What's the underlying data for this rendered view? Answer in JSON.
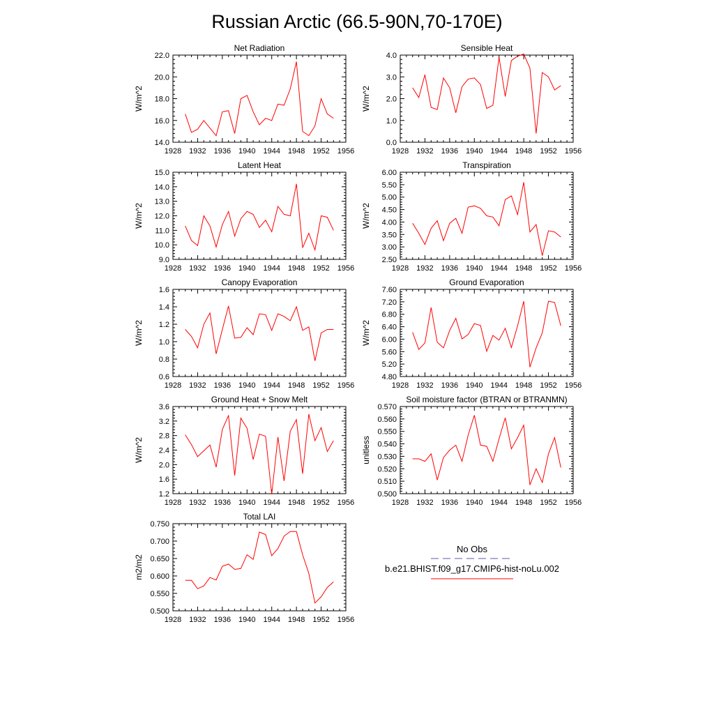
{
  "figure": {
    "title": "Russian Arctic (66.5-90N,70-170E)"
  },
  "legend": {
    "entries": [
      {
        "label": "No Obs",
        "color": "#5a5aa8",
        "style": "dashed"
      },
      {
        "label": "b.e21.BHIST.f09_g17.CMIP6-hist-noLu.002",
        "color": "#ff0000",
        "style": "solid"
      }
    ]
  },
  "chart_data": [
    {
      "type": "line",
      "title": "Net Radiation",
      "ylabel": "W/m^2",
      "xlim": [
        1928,
        1956
      ],
      "ylim": [
        14,
        22
      ],
      "xticks": [
        1928,
        1932,
        1936,
        1940,
        1944,
        1948,
        1952,
        1956
      ],
      "yticks": [
        "14.0",
        "16.0",
        "18.0",
        "20.0",
        "22.0"
      ],
      "series": [
        {
          "color": "#ff0000",
          "x": [
            1930,
            1931,
            1932,
            1933,
            1934,
            1935,
            1936,
            1937,
            1938,
            1939,
            1940,
            1941,
            1942,
            1943,
            1944,
            1945,
            1946,
            1947,
            1948,
            1949,
            1950,
            1951,
            1952,
            1953,
            1954
          ],
          "values": [
            16.6,
            14.9,
            15.2,
            16.0,
            15.3,
            14.6,
            16.8,
            16.9,
            14.8,
            18.0,
            18.3,
            16.8,
            15.6,
            16.2,
            16.0,
            17.5,
            17.4,
            18.9,
            21.4,
            15.0,
            14.6,
            15.5,
            18.0,
            16.6,
            16.2
          ]
        }
      ]
    },
    {
      "type": "line",
      "title": "Sensible Heat",
      "ylabel": "W/m^2",
      "xlim": [
        1928,
        1956
      ],
      "ylim": [
        0,
        4
      ],
      "xticks": [
        1928,
        1932,
        1936,
        1940,
        1944,
        1948,
        1952,
        1956
      ],
      "yticks": [
        "0.0",
        "1.0",
        "2.0",
        "3.0",
        "4.0"
      ],
      "series": [
        {
          "color": "#ff0000",
          "x": [
            1930,
            1931,
            1932,
            1933,
            1934,
            1935,
            1936,
            1937,
            1938,
            1939,
            1940,
            1941,
            1942,
            1943,
            1944,
            1945,
            1946,
            1947,
            1948,
            1949,
            1950,
            1951,
            1952,
            1953,
            1954
          ],
          "values": [
            2.5,
            2.05,
            3.1,
            1.6,
            1.5,
            2.95,
            2.5,
            1.35,
            2.55,
            2.9,
            2.95,
            2.65,
            1.55,
            1.7,
            3.9,
            2.1,
            3.75,
            3.95,
            4.05,
            3.4,
            0.4,
            3.2,
            3.0,
            2.4,
            2.6
          ]
        }
      ]
    },
    {
      "type": "line",
      "title": "Latent Heat",
      "ylabel": "W/m^2",
      "xlim": [
        1928,
        1956
      ],
      "ylim": [
        9,
        15
      ],
      "xticks": [
        1928,
        1932,
        1936,
        1940,
        1944,
        1948,
        1952,
        1956
      ],
      "yticks": [
        "9.0",
        "10.0",
        "11.0",
        "12.0",
        "13.0",
        "14.0",
        "15.0"
      ],
      "series": [
        {
          "color": "#ff0000",
          "x": [
            1930,
            1931,
            1932,
            1933,
            1934,
            1935,
            1936,
            1937,
            1938,
            1939,
            1940,
            1941,
            1942,
            1943,
            1944,
            1945,
            1946,
            1947,
            1948,
            1949,
            1950,
            1951,
            1952,
            1953,
            1954
          ],
          "values": [
            11.3,
            10.3,
            9.95,
            12.0,
            11.3,
            9.85,
            11.4,
            12.3,
            10.6,
            11.8,
            12.3,
            12.1,
            11.2,
            11.7,
            10.9,
            12.65,
            12.1,
            12.0,
            14.2,
            9.8,
            10.8,
            9.65,
            12.0,
            11.9,
            11.0
          ]
        }
      ]
    },
    {
      "type": "line",
      "title": "Transpiration",
      "ylabel": "W/m^2",
      "xlim": [
        1928,
        1956
      ],
      "ylim": [
        2.5,
        6.0
      ],
      "xticks": [
        1928,
        1932,
        1936,
        1940,
        1944,
        1948,
        1952,
        1956
      ],
      "yticks": [
        "2.50",
        "3.00",
        "3.50",
        "4.00",
        "4.50",
        "5.00",
        "5.50",
        "6.00"
      ],
      "series": [
        {
          "color": "#ff0000",
          "x": [
            1930,
            1931,
            1932,
            1933,
            1934,
            1935,
            1936,
            1937,
            1938,
            1939,
            1940,
            1941,
            1942,
            1943,
            1944,
            1945,
            1946,
            1947,
            1948,
            1949,
            1950,
            1951,
            1952,
            1953,
            1954
          ],
          "values": [
            3.95,
            3.55,
            3.1,
            3.75,
            4.05,
            3.25,
            3.95,
            4.15,
            3.55,
            4.6,
            4.65,
            4.55,
            4.25,
            4.2,
            3.85,
            4.9,
            5.05,
            4.3,
            5.6,
            3.6,
            3.9,
            2.65,
            3.65,
            3.6,
            3.4
          ]
        }
      ]
    },
    {
      "type": "line",
      "title": "Canopy Evaporation",
      "ylabel": "W/m^2",
      "xlim": [
        1928,
        1956
      ],
      "ylim": [
        0.6,
        1.6
      ],
      "xticks": [
        1928,
        1932,
        1936,
        1940,
        1944,
        1948,
        1952,
        1956
      ],
      "yticks": [
        "0.6",
        "0.8",
        "1.0",
        "1.2",
        "1.4",
        "1.6"
      ],
      "series": [
        {
          "color": "#ff0000",
          "x": [
            1930,
            1931,
            1932,
            1933,
            1934,
            1935,
            1936,
            1937,
            1938,
            1939,
            1940,
            1941,
            1942,
            1943,
            1944,
            1945,
            1946,
            1947,
            1948,
            1949,
            1950,
            1951,
            1952,
            1953,
            1954
          ],
          "values": [
            1.14,
            1.06,
            0.93,
            1.2,
            1.33,
            0.86,
            1.14,
            1.41,
            1.04,
            1.05,
            1.16,
            1.08,
            1.32,
            1.31,
            1.13,
            1.32,
            1.29,
            1.24,
            1.4,
            1.13,
            1.17,
            0.78,
            1.1,
            1.14,
            1.14
          ]
        }
      ]
    },
    {
      "type": "line",
      "title": "Ground Evaporation",
      "ylabel": "W/m^2",
      "xlim": [
        1928,
        1956
      ],
      "ylim": [
        4.8,
        7.6
      ],
      "xticks": [
        1928,
        1932,
        1936,
        1940,
        1944,
        1948,
        1952,
        1956
      ],
      "yticks": [
        "4.80",
        "5.20",
        "5.60",
        "6.00",
        "6.40",
        "6.80",
        "7.20",
        "7.60"
      ],
      "series": [
        {
          "color": "#ff0000",
          "x": [
            1930,
            1931,
            1932,
            1933,
            1934,
            1935,
            1936,
            1937,
            1938,
            1939,
            1940,
            1941,
            1942,
            1943,
            1944,
            1945,
            1946,
            1947,
            1948,
            1949,
            1950,
            1951,
            1952,
            1953,
            1954
          ],
          "values": [
            6.22,
            5.67,
            5.88,
            7.02,
            5.9,
            5.72,
            6.28,
            6.67,
            6.01,
            6.15,
            6.5,
            6.44,
            5.61,
            6.12,
            5.97,
            6.35,
            5.73,
            6.43,
            7.22,
            5.1,
            5.72,
            6.2,
            7.22,
            7.18,
            6.43
          ]
        }
      ]
    },
    {
      "type": "line",
      "title": "Ground Heat + Snow Melt",
      "ylabel": "W/m^2",
      "xlim": [
        1928,
        1956
      ],
      "ylim": [
        1.2,
        3.6
      ],
      "xticks": [
        1928,
        1932,
        1936,
        1940,
        1944,
        1948,
        1952,
        1956
      ],
      "yticks": [
        "1.2",
        "1.6",
        "2.0",
        "2.4",
        "2.8",
        "3.2",
        "3.6"
      ],
      "series": [
        {
          "color": "#ff0000",
          "x": [
            1930,
            1931,
            1932,
            1933,
            1934,
            1935,
            1936,
            1937,
            1938,
            1939,
            1940,
            1941,
            1942,
            1943,
            1944,
            1945,
            1946,
            1947,
            1948,
            1949,
            1950,
            1951,
            1952,
            1953,
            1954
          ],
          "values": [
            2.82,
            2.55,
            2.22,
            2.38,
            2.54,
            1.93,
            2.97,
            3.35,
            1.7,
            3.28,
            3.0,
            2.14,
            2.84,
            2.78,
            1.18,
            2.76,
            1.55,
            2.92,
            3.24,
            1.75,
            3.39,
            2.66,
            3.02,
            2.36,
            2.66
          ]
        }
      ]
    },
    {
      "type": "line",
      "title": "Soil moisture factor (BTRAN or BTRANMN)",
      "ylabel": "unitless",
      "xlim": [
        1928,
        1956
      ],
      "ylim": [
        0.5,
        0.57
      ],
      "xticks": [
        1928,
        1932,
        1936,
        1940,
        1944,
        1948,
        1952,
        1956
      ],
      "yticks": [
        "0.500",
        "0.510",
        "0.520",
        "0.530",
        "0.540",
        "0.550",
        "0.560",
        "0.570"
      ],
      "series": [
        {
          "color": "#ff0000",
          "x": [
            1930,
            1931,
            1932,
            1933,
            1934,
            1935,
            1936,
            1937,
            1938,
            1939,
            1940,
            1941,
            1942,
            1943,
            1944,
            1945,
            1946,
            1947,
            1948,
            1949,
            1950,
            1951,
            1952,
            1953,
            1954
          ],
          "values": [
            0.528,
            0.528,
            0.526,
            0.532,
            0.511,
            0.529,
            0.535,
            0.539,
            0.526,
            0.547,
            0.563,
            0.539,
            0.538,
            0.526,
            0.544,
            0.561,
            0.536,
            0.545,
            0.555,
            0.507,
            0.52,
            0.509,
            0.532,
            0.545,
            0.521
          ]
        }
      ]
    },
    {
      "type": "line",
      "title": "Total LAI",
      "ylabel": "m2/m2",
      "xlim": [
        1928,
        1956
      ],
      "ylim": [
        0.48,
        0.76
      ],
      "xticks": [
        1928,
        1932,
        1936,
        1940,
        1944,
        1948,
        1952,
        1956
      ],
      "yticks": [
        "0.500",
        "0.550",
        "0.600",
        "0.650",
        "0.700",
        "0.750"
      ],
      "series": [
        {
          "color": "#ff0000",
          "x": [
            1930,
            1931,
            1932,
            1933,
            1934,
            1935,
            1936,
            1937,
            1938,
            1939,
            1940,
            1941,
            1942,
            1943,
            1944,
            1945,
            1946,
            1947,
            1948,
            1949,
            1950,
            1951,
            1952,
            1953,
            1954
          ],
          "values": [
            0.578,
            0.578,
            0.551,
            0.56,
            0.587,
            0.579,
            0.623,
            0.63,
            0.613,
            0.616,
            0.66,
            0.645,
            0.733,
            0.725,
            0.657,
            0.68,
            0.72,
            0.735,
            0.735,
            0.66,
            0.6,
            0.505,
            0.525,
            0.555,
            0.573
          ]
        }
      ]
    }
  ]
}
